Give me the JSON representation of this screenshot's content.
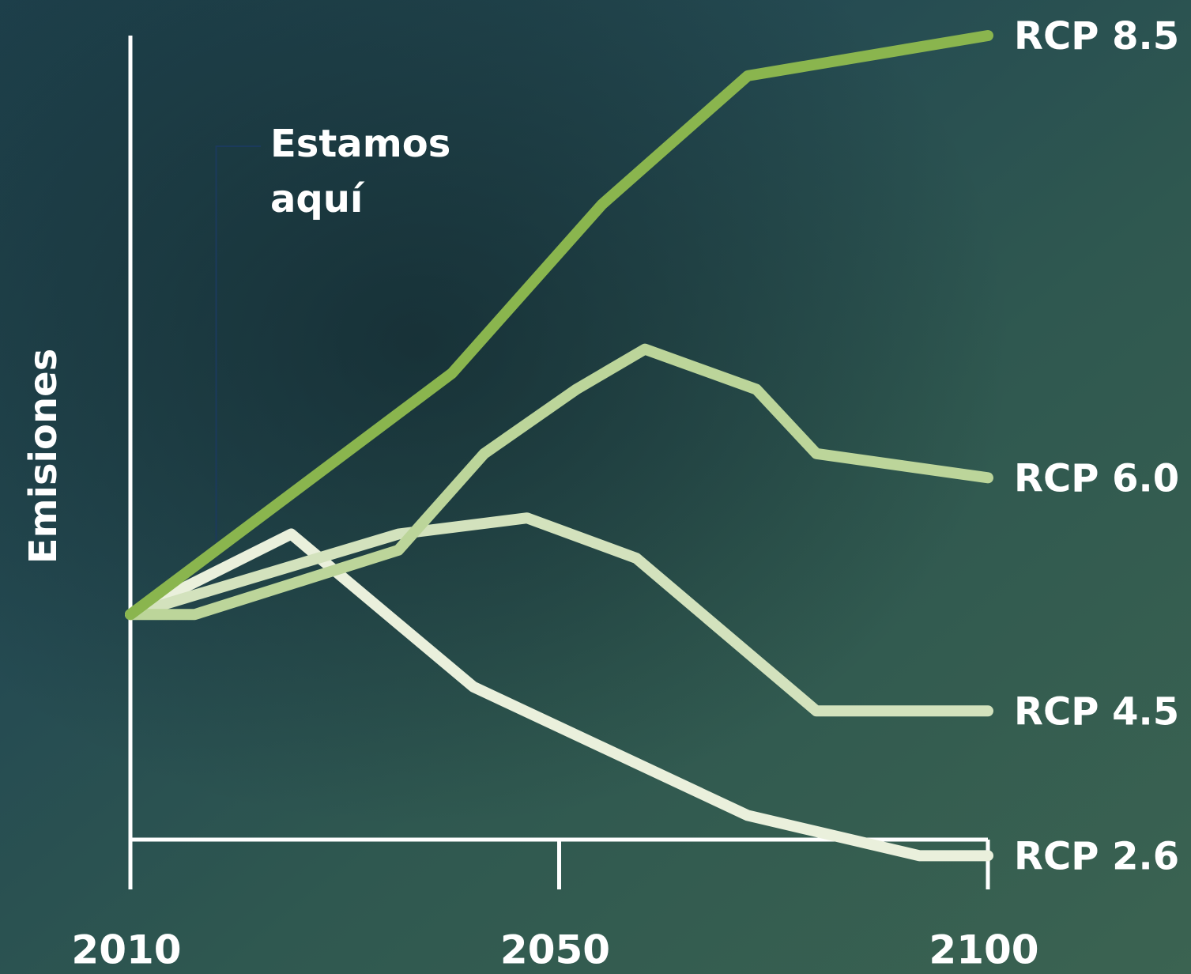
{
  "chart_data": {
    "type": "line",
    "y_label": "Emisiones",
    "annotation": {
      "text": [
        "Estamos",
        "aquí"
      ],
      "x": 2018
    },
    "xlim": [
      2010,
      2100
    ],
    "xticks": [
      2010,
      2050,
      2100
    ],
    "ylim": [
      0,
      100
    ],
    "series": [
      {
        "name": "RCP 8.5",
        "color": "#8ab54e",
        "x": [
          2010,
          2040,
          2055,
          2072,
          2100
        ],
        "values": [
          28,
          58,
          79,
          95,
          100
        ]
      },
      {
        "name": "RCP 6.0",
        "color": "#bcd59a",
        "x": [
          2010,
          2016,
          2035,
          2043,
          2052,
          2060,
          2073,
          2080,
          2100
        ],
        "values": [
          28,
          28,
          36,
          48,
          56,
          61,
          56,
          48,
          45
        ]
      },
      {
        "name": "RCP 4.5",
        "color": "#d3e2bd",
        "x": [
          2010,
          2035,
          2047,
          2059,
          2080,
          2100
        ],
        "values": [
          28,
          38,
          40,
          35,
          16,
          16
        ]
      },
      {
        "name": "RCP 2.6",
        "color": "#eaf0dc",
        "x": [
          2010,
          2025,
          2042,
          2072,
          2092,
          2100
        ],
        "values": [
          28,
          38,
          19,
          3,
          -2,
          -2
        ]
      }
    ]
  }
}
